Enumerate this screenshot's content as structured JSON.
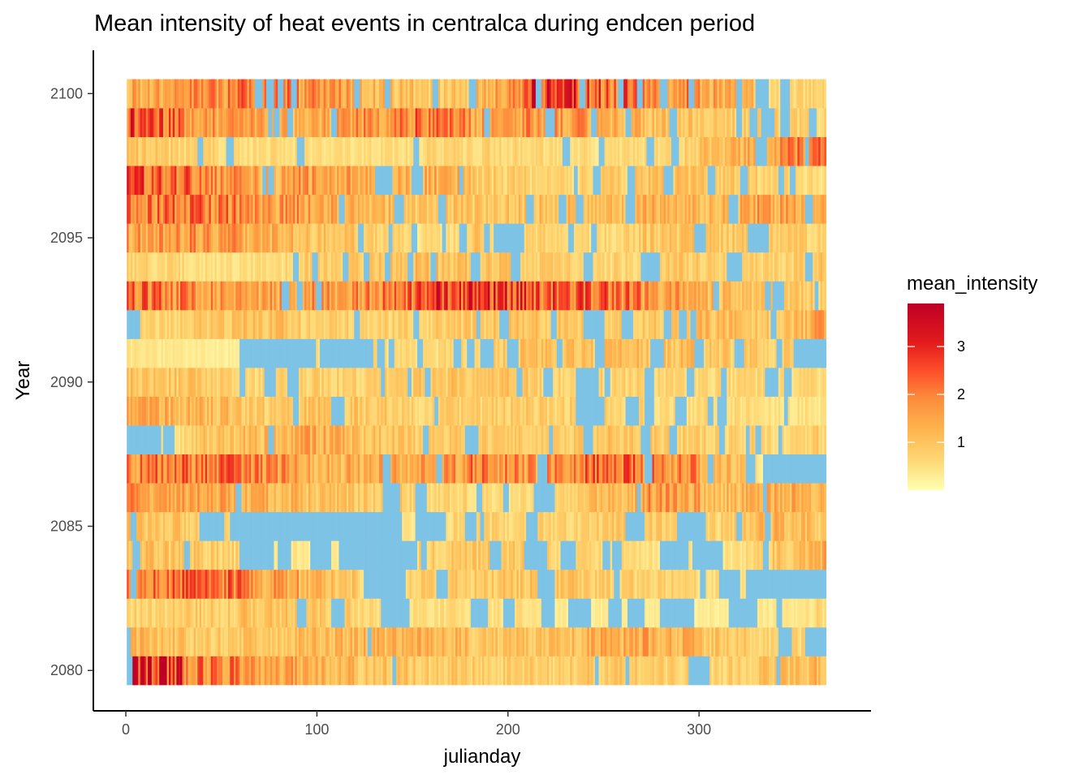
{
  "chart_data": {
    "type": "heatmap",
    "title": "Mean intensity of heat events in centralca during endcen period",
    "xlabel": "julianday",
    "ylabel": "Year",
    "xlim": [
      -17,
      390
    ],
    "ylim": [
      2078.6,
      2101.5
    ],
    "x_ticks": [
      0,
      100,
      200,
      300
    ],
    "y_ticks": [
      2080,
      2085,
      2090,
      2095,
      2100
    ],
    "x_range": [
      1,
      366
    ],
    "years": [
      2080,
      2081,
      2082,
      2083,
      2084,
      2085,
      2086,
      2087,
      2088,
      2089,
      2090,
      2091,
      2092,
      2093,
      2094,
      2095,
      2096,
      2097,
      2098,
      2099,
      2100
    ],
    "row_values_by_30day_bin": [
      [
        3.4,
        2.2,
        1.6,
        1.3,
        1.0,
        0.9,
        0.8,
        0.8,
        0.9,
        0.8,
        0.7,
        1.0,
        1.2
      ],
      [
        1.2,
        0.9,
        1.0,
        1.1,
        1.2,
        1.3,
        1.0,
        0.9,
        1.3,
        1.4,
        1.0,
        0.7,
        0.6
      ],
      [
        0.7,
        0.8,
        1.0,
        0.9,
        0.6,
        0.5,
        0.6,
        0.4,
        0.3,
        0.3,
        0.3,
        0.3,
        0.6
      ],
      [
        2.0,
        2.3,
        1.7,
        1.2,
        0.7,
        0.8,
        0.9,
        1.0,
        0.8,
        0.7,
        0.6,
        0.3,
        0.0
      ],
      [
        1.0,
        0.9,
        0.5,
        0.3,
        0.3,
        0.8,
        0.9,
        0.8,
        0.6,
        0.5,
        0.4,
        0.8,
        1.4
      ],
      [
        1.0,
        0.8,
        0.4,
        0.2,
        0.3,
        0.6,
        0.7,
        0.7,
        0.8,
        0.9,
        0.6,
        1.2,
        0.9
      ],
      [
        1.6,
        1.5,
        1.3,
        1.0,
        0.9,
        0.7,
        0.6,
        0.5,
        1.0,
        1.7,
        1.1,
        1.3,
        1.4
      ],
      [
        2.0,
        2.1,
        1.9,
        1.4,
        1.3,
        1.5,
        1.9,
        1.6,
        2.2,
        2.0,
        1.4,
        0.3,
        0.0
      ],
      [
        0.2,
        0.9,
        1.1,
        1.4,
        1.0,
        0.8,
        0.9,
        0.7,
        1.0,
        0.9,
        0.8,
        0.6,
        0.8
      ],
      [
        1.4,
        1.2,
        0.8,
        1.0,
        0.9,
        0.7,
        0.8,
        0.8,
        0.8,
        0.5,
        0.6,
        0.5,
        0.4
      ],
      [
        1.0,
        0.9,
        0.6,
        0.8,
        0.7,
        0.9,
        1.0,
        0.8,
        0.7,
        0.7,
        0.6,
        0.7,
        0.5
      ],
      [
        0.4,
        0.3,
        0.2,
        0.5,
        0.6,
        0.5,
        0.9,
        1.0,
        1.0,
        1.1,
        0.9,
        0.8,
        1.0
      ],
      [
        0.6,
        0.8,
        1.1,
        0.8,
        0.7,
        0.8,
        0.9,
        1.0,
        0.8,
        0.9,
        1.1,
        0.8,
        1.6
      ],
      [
        2.1,
        1.8,
        1.5,
        1.6,
        1.8,
        2.5,
        3.1,
        2.4,
        2.3,
        1.7,
        1.2,
        0.9,
        0.8
      ],
      [
        0.7,
        0.5,
        0.5,
        0.8,
        0.9,
        1.1,
        1.0,
        0.8,
        0.6,
        0.9,
        0.8,
        0.7,
        0.9
      ],
      [
        1.6,
        1.7,
        1.4,
        1.0,
        0.8,
        0.5,
        0.9,
        0.7,
        0.6,
        0.9,
        0.9,
        0.8,
        0.7
      ],
      [
        2.0,
        2.2,
        1.7,
        1.5,
        1.2,
        1.0,
        0.9,
        1.1,
        1.0,
        1.3,
        1.2,
        1.5,
        1.3
      ],
      [
        2.4,
        2.1,
        1.4,
        1.6,
        1.3,
        1.5,
        0.9,
        0.6,
        0.8,
        1.0,
        0.9,
        0.7,
        0.5
      ],
      [
        0.9,
        0.7,
        0.6,
        0.5,
        0.5,
        0.6,
        0.7,
        0.6,
        0.5,
        0.6,
        1.0,
        1.8,
        2.0
      ],
      [
        2.7,
        1.6,
        1.5,
        1.3,
        1.7,
        2.1,
        1.5,
        1.8,
        1.3,
        1.1,
        0.9,
        0.8,
        0.6
      ],
      [
        1.4,
        1.6,
        2.1,
        1.8,
        1.2,
        0.9,
        1.0,
        3.0,
        2.4,
        2.0,
        1.5,
        0.7,
        0.6
      ]
    ],
    "missing_day_ranges": [
      [
        [
          1,
          3
        ],
        [
          140,
          141
        ],
        [
          246,
          247
        ],
        [
          262,
          263
        ],
        [
          295,
          305
        ],
        [
          341,
          342
        ]
      ],
      [
        [
          1,
          2
        ],
        [
          127,
          128
        ],
        [
          342,
          348
        ],
        [
          356,
          366
        ]
      ],
      [
        [
          90,
          94
        ],
        [
          108,
          114
        ],
        [
          134,
          148
        ],
        [
          181,
          189
        ],
        [
          198,
          203
        ],
        [
          218,
          224
        ],
        [
          232,
          243
        ],
        [
          253,
          259
        ],
        [
          263,
          271
        ],
        [
          280,
          297
        ],
        [
          316,
          330
        ],
        [
          341,
          343
        ]
      ],
      [
        [
          3,
          5
        ],
        [
          125,
          128
        ],
        [
          127,
          146
        ],
        [
          163,
          168
        ],
        [
          216,
          224
        ],
        [
          256,
          258
        ],
        [
          301,
          303
        ],
        [
          311,
          321
        ],
        [
          325,
          366
        ]
      ],
      [
        [
          4,
          7
        ],
        [
          31,
          33
        ],
        [
          60,
          77
        ],
        [
          80,
          86
        ],
        [
          97,
          107
        ],
        [
          112,
          152
        ],
        [
          155,
          157
        ],
        [
          191,
          196
        ],
        [
          209,
          220
        ],
        [
          228,
          235
        ],
        [
          250,
          253
        ],
        [
          255,
          259
        ],
        [
          280,
          294
        ],
        [
          297,
          312
        ],
        [
          334,
          336
        ]
      ],
      [
        [
          3,
          5
        ],
        [
          39,
          51
        ],
        [
          55,
          129
        ],
        [
          130,
          144
        ],
        [
          152,
          167
        ],
        [
          178,
          183
        ],
        [
          186,
          187
        ],
        [
          210,
          215
        ],
        [
          262,
          271
        ],
        [
          289,
          303
        ],
        [
          320,
          322
        ],
        [
          335,
          337
        ]
      ],
      [
        [
          58,
          60
        ],
        [
          135,
          140
        ],
        [
          140,
          143
        ],
        [
          152,
          157
        ],
        [
          184,
          186
        ],
        [
          198,
          200
        ],
        [
          214,
          224
        ],
        [
          268,
          269
        ],
        [
          334,
          335
        ]
      ],
      [
        [
          135,
          138
        ],
        [
          163,
          165
        ],
        [
          216,
          220
        ],
        [
          272,
          275
        ],
        [
          305,
          307
        ],
        [
          325,
          329
        ],
        [
          334,
          366
        ]
      ],
      [
        [
          1,
          18
        ],
        [
          20,
          25
        ],
        [
          75,
          77
        ],
        [
          156,
          158
        ],
        [
          178,
          180
        ],
        [
          180,
          184
        ],
        [
          222,
          223
        ],
        [
          240,
          244
        ],
        [
          270,
          274
        ],
        [
          285,
          288
        ],
        [
          311,
          313
        ],
        [
          325,
          326
        ],
        [
          330,
          332
        ],
        [
          342,
          343
        ]
      ],
      [
        [
          88,
          90
        ],
        [
          108,
          114
        ],
        [
          162,
          163
        ],
        [
          236,
          250
        ],
        [
          262,
          268
        ],
        [
          272,
          276
        ],
        [
          288,
          293
        ],
        [
          305,
          307
        ],
        [
          310,
          314
        ],
        [
          345,
          346
        ]
      ],
      [
        [
          60,
          62
        ],
        [
          73,
          78
        ],
        [
          85,
          90
        ],
        [
          134,
          135
        ],
        [
          148,
          149
        ],
        [
          157,
          159
        ],
        [
          205,
          207
        ],
        [
          219,
          223
        ],
        [
          236,
          247
        ],
        [
          251,
          253
        ],
        [
          272,
          276
        ],
        [
          294,
          297
        ],
        [
          312,
          314
        ],
        [
          335,
          341
        ],
        [
          345,
          348
        ]
      ],
      [
        [
          60,
          99
        ],
        [
          102,
          114
        ],
        [
          115,
          129
        ],
        [
          132,
          135
        ],
        [
          138,
          140
        ],
        [
          153,
          155
        ],
        [
          172,
          175
        ],
        [
          179,
          182
        ],
        [
          186,
          192
        ],
        [
          200,
          205
        ],
        [
          226,
          228
        ],
        [
          246,
          250
        ],
        [
          275,
          281
        ],
        [
          298,
          302
        ],
        [
          319,
          323
        ],
        [
          341,
          343
        ],
        [
          350,
          357
        ],
        [
          358,
          366
        ]
      ],
      [
        [
          1,
          7
        ],
        [
          120,
          122
        ],
        [
          151,
          153
        ],
        [
          184,
          185
        ],
        [
          196,
          200
        ],
        [
          223,
          225
        ],
        [
          240,
          250
        ],
        [
          260,
          265
        ],
        [
          282,
          285
        ],
        [
          290,
          293
        ],
        [
          296,
          298
        ],
        [
          338,
          340
        ]
      ],
      [
        [
          82,
          85
        ],
        [
          90,
          92
        ],
        [
          100,
          102
        ],
        [
          308,
          310
        ],
        [
          335,
          337
        ],
        [
          339,
          344
        ],
        [
          361,
          362
        ]
      ],
      [
        [
          88,
          90
        ],
        [
          98,
          100
        ],
        [
          114,
          116
        ],
        [
          125,
          127
        ],
        [
          136,
          138
        ],
        [
          148,
          150
        ],
        [
          160,
          162
        ],
        [
          181,
          185
        ],
        [
          202,
          206
        ],
        [
          240,
          244
        ],
        [
          270,
          276
        ],
        [
          277,
          279
        ],
        [
          315,
          322
        ],
        [
          356,
          359
        ]
      ],
      [
        [
          122,
          124
        ],
        [
          138,
          139
        ],
        [
          150,
          152
        ],
        [
          166,
          167
        ],
        [
          175,
          178
        ],
        [
          188,
          190
        ],
        [
          193,
          208
        ],
        [
          232,
          234
        ],
        [
          244,
          246
        ],
        [
          298,
          303
        ],
        [
          326,
          336
        ]
      ],
      [
        [
          112,
          114
        ],
        [
          141,
          145
        ],
        [
          164,
          167
        ],
        [
          210,
          213
        ],
        [
          227,
          230
        ],
        [
          236,
          239
        ],
        [
          262,
          266
        ],
        [
          316,
          320
        ],
        [
          356,
          359
        ]
      ],
      [
        [
          72,
          73
        ],
        [
          75,
          77
        ],
        [
          131,
          139
        ],
        [
          150,
          155
        ],
        [
          175,
          176
        ],
        [
          235,
          236
        ],
        [
          245,
          248
        ],
        [
          263,
          266
        ],
        [
          282,
          286
        ],
        [
          305,
          308
        ],
        [
          322,
          325
        ],
        [
          342,
          344
        ],
        [
          348,
          350
        ]
      ],
      [
        [
          38,
          40
        ],
        [
          53,
          56
        ],
        [
          90,
          93
        ],
        [
          151,
          153
        ],
        [
          229,
          232
        ],
        [
          248,
          250
        ],
        [
          273,
          276
        ],
        [
          286,
          289
        ],
        [
          330,
          335
        ],
        [
          356,
          357
        ]
      ],
      [
        [
          75,
          76
        ],
        [
          78,
          80
        ],
        [
          85,
          87
        ],
        [
          108,
          110
        ],
        [
          188,
          190
        ],
        [
          220,
          224
        ],
        [
          244,
          246
        ],
        [
          262,
          264
        ],
        [
          285,
          288
        ],
        [
          320,
          322
        ],
        [
          327,
          330
        ],
        [
          333,
          336
        ],
        [
          337,
          339
        ],
        [
          343,
          347
        ],
        [
          358,
          361
        ]
      ],
      [
        [
          68,
          71
        ],
        [
          74,
          77
        ],
        [
          80,
          82
        ],
        [
          87,
          89
        ],
        [
          120,
          122
        ],
        [
          136,
          138
        ],
        [
          161,
          163
        ],
        [
          180,
          183
        ],
        [
          215,
          217
        ],
        [
          238,
          240
        ],
        [
          258,
          260
        ],
        [
          268,
          270
        ],
        [
          280,
          283
        ],
        [
          295,
          297
        ],
        [
          320,
          322
        ],
        [
          330,
          333
        ],
        [
          334,
          336
        ],
        [
          343,
          347
        ]
      ]
    ],
    "legend": {
      "title": "mean_intensity",
      "range": [
        0,
        3.9
      ],
      "ticks": [
        1,
        2,
        3
      ],
      "placement": "right"
    },
    "colors": {
      "missing": "#7dc3e6",
      "scale": [
        "#ffffb2",
        "#fed976",
        "#feb24c",
        "#fd8d3c",
        "#fc4e2a",
        "#e31a1c",
        "#bd0026"
      ],
      "scale_stops": [
        0.0,
        0.6,
        1.3,
        1.9,
        2.5,
        3.1,
        3.9
      ]
    }
  }
}
